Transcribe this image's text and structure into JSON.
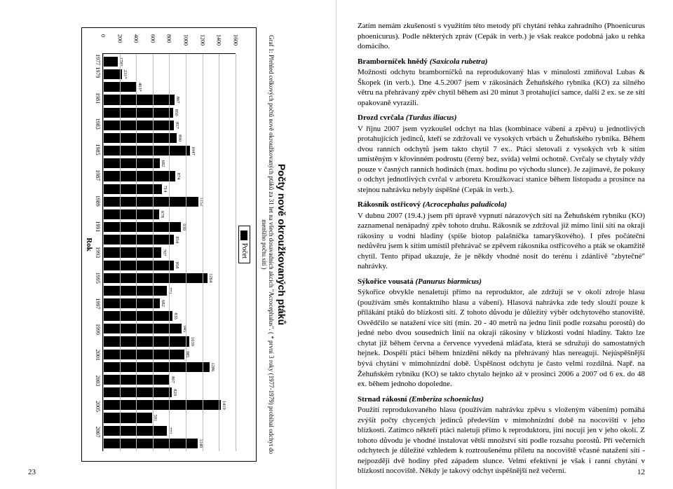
{
  "page_left_number": "23",
  "page_right_number": "12",
  "chart": {
    "title": "Počty nově okroužkovaných ptáků",
    "caption": "Graf 1: Přehled celkových počtů nově okroužkovaných ptáků za 31 let na všech dosavadních akcích \"Acrocephalus\". ( * první 3 roky (1977-1979) probíhal odchyt do menšího počtu sítí )",
    "legend": "Počet",
    "y_label": "",
    "x_label": "Rok",
    "y_max": 1600,
    "y_ticks": [
      0,
      200,
      400,
      600,
      800,
      1000,
      1200,
      1400,
      1600
    ],
    "bar_color": "#000000",
    "grid_color": "#bbbbbb",
    "bars": [
      {
        "year": "1977",
        "value": 178,
        "label": "178*"
      },
      {
        "year": "1979",
        "value": 231,
        "label": "231*"
      },
      {
        "year": "",
        "value": 403,
        "label": "403*"
      },
      {
        "year": "1981",
        "value": 867,
        "label": "867"
      },
      {
        "year": "",
        "value": 850,
        "label": "850"
      },
      {
        "year": "1983",
        "value": 857,
        "label": "857"
      },
      {
        "year": "",
        "value": 890,
        "label": "890"
      },
      {
        "year": "1985",
        "value": 1047,
        "label": "1047"
      },
      {
        "year": "",
        "value": 682,
        "label": "682"
      },
      {
        "year": "1987",
        "value": 874,
        "label": "874"
      },
      {
        "year": "",
        "value": 714,
        "label": "714"
      },
      {
        "year": "1989",
        "value": 1152,
        "label": "1152"
      },
      {
        "year": "",
        "value": 678,
        "label": "678"
      },
      {
        "year": "1991",
        "value": 939,
        "label": "939"
      },
      {
        "year": "",
        "value": 854,
        "label": "854"
      },
      {
        "year": "1993",
        "value": 707,
        "label": "707"
      },
      {
        "year": "",
        "value": 858,
        "label": "858"
      },
      {
        "year": "1995",
        "value": 1264,
        "label": "1264"
      },
      {
        "year": "",
        "value": 771,
        "label": "771"
      },
      {
        "year": "1997",
        "value": 682,
        "label": "682"
      },
      {
        "year": "",
        "value": 835,
        "label": "835"
      },
      {
        "year": "1999",
        "value": 945,
        "label": "945"
      },
      {
        "year": "",
        "value": 1039,
        "label": "1039"
      },
      {
        "year": "2001",
        "value": 985,
        "label": "985"
      },
      {
        "year": "",
        "value": 1286,
        "label": "1286"
      },
      {
        "year": "2003",
        "value": 807,
        "label": "807"
      },
      {
        "year": "",
        "value": 829,
        "label": "829"
      },
      {
        "year": "2005",
        "value": 1419,
        "label": "1419"
      },
      {
        "year": "",
        "value": 591,
        "label": "591"
      },
      {
        "year": "2007",
        "value": 772,
        "label": "772"
      },
      {
        "year": "",
        "value": 1140,
        "label": "1140"
      }
    ]
  },
  "right_intro": "Zatím nemám zkušenosti s využitím této metody při chytání rehka zahradního (Phoenicurus phoenicurus). Podle některých zpráv (Cepák in verb.) je však reakce podobná jako u rehka domácího.",
  "sections": [
    {
      "title": "Bramborníček hnědý",
      "latin": "(Saxicola rubetra)",
      "body": "Možnosti odchytu bramborníčků na reprodukovaný hlas v minulosti zmiňoval Lubas & Škopek (in verb.). Dne 4.5.2007 jsem v rákosinách Žehuňského rybníka (KO) za silného větru na přehrávaný zpěv chytil během asi 20 minut 3 protahující samce, další 2 ex. se ze sítí opakovaně vyrazili."
    },
    {
      "title": "Drozd cvrčala",
      "latin": "(Turdus iliacus)",
      "body": "V říjnu 2007 jsem vyzkoušel odchyt na hlas (kombinace vábení a zpěvu) u jednotlivých protahujících jedinců, kteří se zdržovali ve vysokých vrbách u Žehuňského rybníka. Během dvou ranních odchytů jsem takto chytil 7 ex.. Ptáci sletovali z vysokých vrb k sítím umístěným v křovinném podrostu (černý bez, svída) velmi ochotně. Cvrčaly se chytaly vždy pouze v časných ranních hodinách (max. hodinu po východu slunce). Je zajímavé, že pokusy o odchyt jednotlivých cvrčal v arboretu Kroužkovací stanice během listopadu a prosince na stejnou nahrávku nebyly úspěšné (Cepák in verb.)."
    },
    {
      "title": "Rákosník ostřicový",
      "latin": "(Acrocephalus paludicola)",
      "body": "V dubnu 2007 (19.4.) jsem při úpravě vypnutí nárazových sítí na Žehuňském rybníku (KO) zaznamenal nenápadný zpěv tohoto druhu. Rákosník se zdržoval již mimo linii sítí na okraji rákosiny u vodní hladiny (spíše biotop palašníčka tamaryškového). I přes počáteční nedůvěru jsem k sítím umístil přehrávač se zpěvem rákosníka ostřicového a pták se okamžitě chytil. Tento případ ukazuje, že je někdy vhodné nosit do terénu i zdánlivě \"zbytečné\" nahrávky."
    },
    {
      "title": "Sýkořice vousatá",
      "latin": "(Panurus biarmicus)",
      "body": "Sýkořice obvykle nenaletují přímo na reproduktor, ale zdržují se v okolí zdroje hlasu (používám směs kontaktního hlasu a vábení). Hlasová nahrávka zde tedy slouží pouze k přilákání ptáků do blízkosti sítí. Z tohoto důvodu je důležitý výběr odchytového stanoviště. Osvědčilo se natažení více sítí (min. 20 - 40 metrů na jednu linii podle rozsahu porostů) do jedné nebo dvou sousedních linií na okraji rákosiny v blízkosti vodní hladiny. Takto lze chytat již během června a července vyvedená mláďata, která se sdružují do samostatných hejnek. Dospělí ptáci během hnízdění někdy na přehrávaný hlas nereagují. Nejúspěšnější bývá chytání v mimohnízdní době. Úspěšnost odchytu je často velmi rozdílná. Např. na Žehuňském rybníku (KO) se takto chytalo hejnko až v prosinci 2006 a 2007 od 6 ex. do 48 ex. během jednoho dopoledne."
    },
    {
      "title": "Strnad rákosní",
      "latin": "(Emberiza schoeniclus)",
      "body": "Použití reprodukovaného hlasu (používám nahrávku zpěvu s vloženým vábením) pomáhá zvýšit počty chycených jedinců především v mimohnízdní době na nocovišti v jeho blízkosti. Zatímco někteří ptáci naletují přímo k reproduktoru, jiní nocují jen v jeho okolí. Z tohoto důvodu je vhodné instalovat větší množství sítí podle rozsahu porostů. Při večerních odchytech je důležité vzhledem k roztroušenému příletu na nocoviště včasné natažení sítí - nejpozději dvě hodiny před západem slunce. Velmi efektivní je však i ranní chytání v blízkosti nocoviště. Někdy je takový odchyt úspěšnější než večerní."
    }
  ]
}
